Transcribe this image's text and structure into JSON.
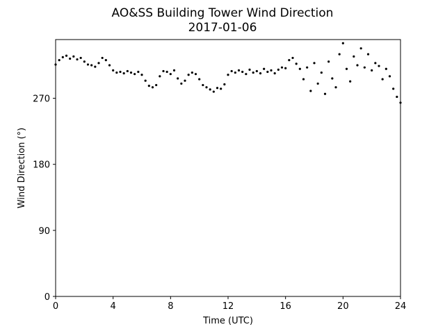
{
  "chart_data": {
    "type": "scatter",
    "title": "AO&SS Building Tower Wind Direction",
    "subtitle": "2017-01-06",
    "x_label": "Time (UTC)",
    "y_label": "Wind Direction (°)",
    "color": "#000000",
    "xlim": [
      0,
      24
    ],
    "xticks": [
      0,
      4,
      8,
      12,
      16,
      20,
      24
    ],
    "ylim": [
      0,
      350
    ],
    "yticks": [
      0,
      90,
      180,
      270
    ],
    "x": [
      0,
      0.25,
      0.5,
      0.75,
      1,
      1.25,
      1.5,
      1.75,
      2,
      2.25,
      2.5,
      2.75,
      3,
      3.25,
      3.5,
      3.75,
      4,
      4.25,
      4.5,
      4.75,
      5,
      5.25,
      5.5,
      5.75,
      6,
      6.25,
      6.5,
      6.75,
      7,
      7.25,
      7.5,
      7.75,
      8,
      8.25,
      8.5,
      8.75,
      9,
      9.25,
      9.5,
      9.75,
      10,
      10.25,
      10.5,
      10.75,
      11,
      11.25,
      11.5,
      11.75,
      12,
      12.25,
      12.5,
      12.75,
      13,
      13.25,
      13.5,
      13.75,
      14,
      14.25,
      14.5,
      14.75,
      15,
      15.25,
      15.5,
      15.75,
      16,
      16.25,
      16.5,
      16.75,
      17,
      17.25,
      17.5,
      17.75,
      18,
      18.25,
      18.5,
      18.75,
      19,
      19.25,
      19.5,
      19.75,
      20,
      20.25,
      20.5,
      20.75,
      21,
      21.25,
      21.5,
      21.75,
      22,
      22.25,
      22.5,
      22.75,
      23,
      23.25,
      23.5,
      23.75,
      24
    ],
    "values": [
      316,
      322,
      326,
      328,
      324,
      327,
      323,
      325,
      320,
      316,
      315,
      313,
      318,
      325,
      322,
      315,
      308,
      305,
      306,
      304,
      307,
      305,
      303,
      306,
      302,
      294,
      287,
      285,
      288,
      300,
      307,
      306,
      303,
      308,
      297,
      290,
      294,
      302,
      305,
      303,
      296,
      288,
      285,
      282,
      279,
      284,
      283,
      289,
      302,
      307,
      305,
      308,
      306,
      303,
      309,
      305,
      307,
      304,
      310,
      306,
      308,
      304,
      309,
      312,
      311,
      322,
      325,
      317,
      310,
      296,
      312,
      280,
      318,
      290,
      305,
      276,
      320,
      297,
      285,
      330,
      345,
      310,
      293,
      327,
      315,
      338,
      312,
      330,
      308,
      318,
      314,
      296,
      310,
      300,
      283,
      272,
      264
    ]
  }
}
